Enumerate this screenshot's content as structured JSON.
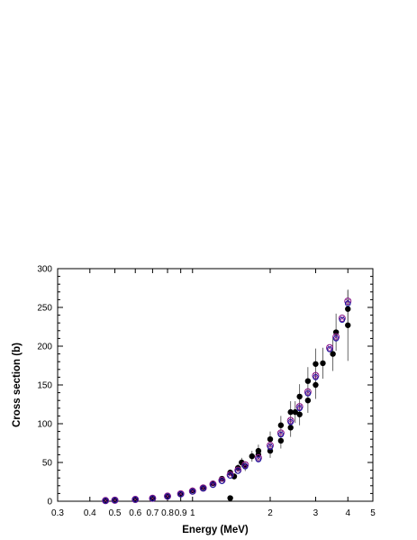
{
  "chart_data": {
    "type": "scatter",
    "title": "",
    "xlabel": "Energy (MeV)",
    "ylabel": "Cross section (b)",
    "xscale": "log",
    "xlim": [
      0.3,
      5
    ],
    "ylim": [
      0,
      300
    ],
    "x_ticks": [
      {
        "value": 0.3,
        "label": "0.3"
      },
      {
        "value": 0.4,
        "label": "0.4"
      },
      {
        "value": 0.5,
        "label": "0.5"
      },
      {
        "value": 0.6,
        "label": "0.6"
      },
      {
        "value": 0.7,
        "label": "0.7"
      },
      {
        "value": 0.8,
        "label": "0.8"
      },
      {
        "value": 0.9,
        "label": "0.9"
      },
      {
        "value": 1,
        "label": "1"
      },
      {
        "value": 2,
        "label": "2"
      },
      {
        "value": 3,
        "label": "3"
      },
      {
        "value": 4,
        "label": "4"
      },
      {
        "value": 5,
        "label": "5"
      }
    ],
    "y_ticks": [
      {
        "value": 0,
        "label": "0"
      },
      {
        "value": 50,
        "label": "50"
      },
      {
        "value": 100,
        "label": "100"
      },
      {
        "value": 150,
        "label": "150"
      },
      {
        "value": 200,
        "label": "200"
      },
      {
        "value": 250,
        "label": "250"
      },
      {
        "value": 300,
        "label": "300"
      }
    ],
    "grid": false,
    "legend": "none",
    "series": [
      {
        "marker": "filled-circle",
        "color": "#000000",
        "points": [
          {
            "x": 0.46,
            "y": 1,
            "err": 0
          },
          {
            "x": 0.5,
            "y": 1.5,
            "err": 0
          },
          {
            "x": 0.6,
            "y": 2.5,
            "err": 0
          },
          {
            "x": 0.7,
            "y": 4,
            "err": 0
          },
          {
            "x": 0.8,
            "y": 7,
            "err": 0
          },
          {
            "x": 0.9,
            "y": 10,
            "err": 0
          },
          {
            "x": 1.0,
            "y": 14,
            "err": 0
          },
          {
            "x": 1.1,
            "y": 18,
            "err": 0
          },
          {
            "x": 1.2,
            "y": 23,
            "err": 2
          },
          {
            "x": 1.3,
            "y": 29,
            "err": 3
          },
          {
            "x": 1.4,
            "y": 37,
            "err": 4
          },
          {
            "x": 1.4,
            "y": 4,
            "err": 0
          },
          {
            "x": 1.45,
            "y": 32,
            "err": 4
          },
          {
            "x": 1.5,
            "y": 43,
            "err": 5
          },
          {
            "x": 1.55,
            "y": 50,
            "err": 6
          },
          {
            "x": 1.6,
            "y": 45,
            "err": 6
          },
          {
            "x": 1.7,
            "y": 58,
            "err": 7
          },
          {
            "x": 1.8,
            "y": 60,
            "err": 8
          },
          {
            "x": 1.8,
            "y": 65,
            "err": 8
          },
          {
            "x": 2.0,
            "y": 80,
            "err": 10
          },
          {
            "x": 2.0,
            "y": 65,
            "err": 9
          },
          {
            "x": 2.2,
            "y": 98,
            "err": 12
          },
          {
            "x": 2.2,
            "y": 78,
            "err": 10
          },
          {
            "x": 2.4,
            "y": 115,
            "err": 14
          },
          {
            "x": 2.4,
            "y": 95,
            "err": 12
          },
          {
            "x": 2.5,
            "y": 115,
            "err": 14
          },
          {
            "x": 2.6,
            "y": 135,
            "err": 16
          },
          {
            "x": 2.6,
            "y": 112,
            "err": 14
          },
          {
            "x": 2.8,
            "y": 155,
            "err": 18
          },
          {
            "x": 2.8,
            "y": 130,
            "err": 16
          },
          {
            "x": 3.0,
            "y": 177,
            "err": 20
          },
          {
            "x": 3.0,
            "y": 150,
            "err": 18
          },
          {
            "x": 3.2,
            "y": 178,
            "err": 20
          },
          {
            "x": 3.5,
            "y": 190,
            "err": 22
          },
          {
            "x": 3.6,
            "y": 218,
            "err": 24
          },
          {
            "x": 4.0,
            "y": 248,
            "err": 24
          },
          {
            "x": 4.0,
            "y": 227,
            "err": 46
          }
        ]
      },
      {
        "marker": "circle-cross",
        "color": "#8b1a8b",
        "points": [
          {
            "x": 0.46,
            "y": 0.8
          },
          {
            "x": 0.5,
            "y": 1.3
          },
          {
            "x": 0.6,
            "y": 2.3
          },
          {
            "x": 0.7,
            "y": 3.8
          },
          {
            "x": 0.8,
            "y": 6.5
          },
          {
            "x": 0.9,
            "y": 9.5
          },
          {
            "x": 1.0,
            "y": 13
          },
          {
            "x": 1.1,
            "y": 17
          },
          {
            "x": 1.2,
            "y": 22
          },
          {
            "x": 1.3,
            "y": 27
          },
          {
            "x": 1.4,
            "y": 34
          },
          {
            "x": 1.5,
            "y": 40
          },
          {
            "x": 1.6,
            "y": 47
          },
          {
            "x": 1.8,
            "y": 56
          },
          {
            "x": 2.0,
            "y": 72
          },
          {
            "x": 2.2,
            "y": 88
          },
          {
            "x": 2.4,
            "y": 104
          },
          {
            "x": 2.6,
            "y": 122
          },
          {
            "x": 2.8,
            "y": 141
          },
          {
            "x": 3.0,
            "y": 162
          },
          {
            "x": 3.4,
            "y": 198
          },
          {
            "x": 3.6,
            "y": 212
          },
          {
            "x": 3.8,
            "y": 236
          },
          {
            "x": 4.0,
            "y": 258
          }
        ]
      },
      {
        "marker": "hollow-circle",
        "color": "#1a1aa0",
        "points": [
          {
            "x": 0.46,
            "y": 0.7
          },
          {
            "x": 0.5,
            "y": 1.2
          },
          {
            "x": 0.6,
            "y": 2.2
          },
          {
            "x": 0.7,
            "y": 3.6
          },
          {
            "x": 0.8,
            "y": 6.2
          },
          {
            "x": 0.9,
            "y": 9
          },
          {
            "x": 1.0,
            "y": 12.5
          },
          {
            "x": 1.1,
            "y": 16.5
          },
          {
            "x": 1.2,
            "y": 21
          },
          {
            "x": 1.3,
            "y": 26
          },
          {
            "x": 1.4,
            "y": 33
          },
          {
            "x": 1.5,
            "y": 39
          },
          {
            "x": 1.6,
            "y": 45
          },
          {
            "x": 1.8,
            "y": 54
          },
          {
            "x": 2.0,
            "y": 70
          },
          {
            "x": 2.2,
            "y": 86
          },
          {
            "x": 2.4,
            "y": 102
          },
          {
            "x": 2.6,
            "y": 120
          },
          {
            "x": 2.8,
            "y": 139
          },
          {
            "x": 3.0,
            "y": 160
          },
          {
            "x": 3.4,
            "y": 196
          },
          {
            "x": 3.6,
            "y": 210
          },
          {
            "x": 3.8,
            "y": 234
          },
          {
            "x": 4.0,
            "y": 255
          }
        ]
      }
    ]
  }
}
